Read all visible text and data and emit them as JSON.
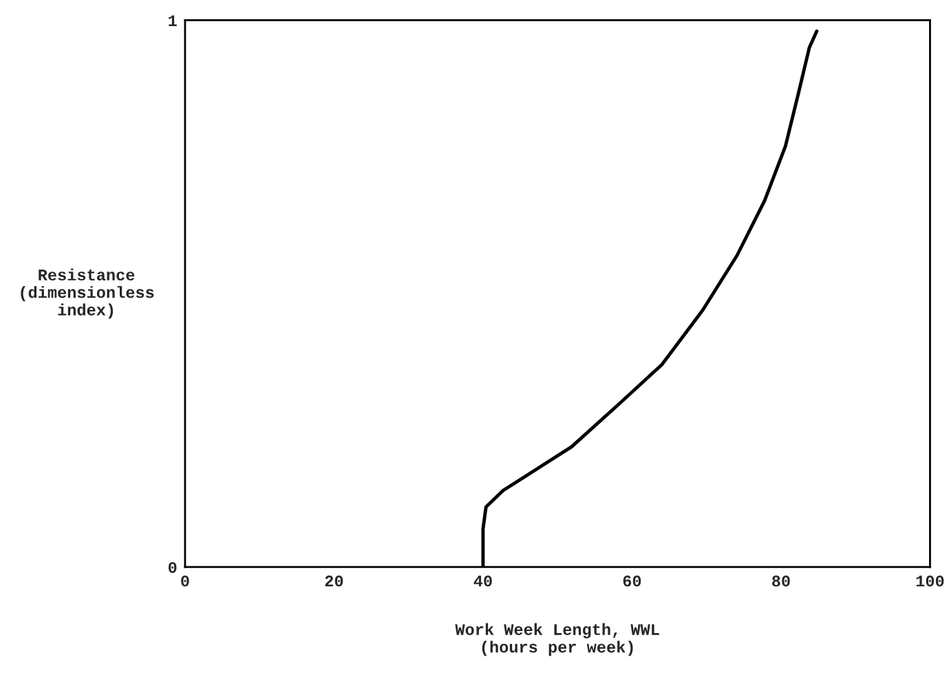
{
  "chart_data": {
    "type": "line",
    "xlabel": "Work Week Length, WWL\n(hours per week)",
    "ylabel": "Resistance\n(dimensionless\nindex)",
    "x": [
      40,
      40,
      40.4,
      42.7,
      47.3,
      51.9,
      58.4,
      64.0,
      69.5,
      74.1,
      77.8,
      80.6,
      82.4,
      83.8,
      84.8
    ],
    "series": [
      {
        "color": "#000000",
        "values": [
          0,
          0.07,
          0.11,
          0.14,
          0.18,
          0.22,
          0.3,
          0.37,
          0.47,
          0.57,
          0.67,
          0.77,
          0.87,
          0.95,
          0.98
        ]
      }
    ],
    "xlim": [
      0,
      100
    ],
    "ylim": [
      0,
      1
    ],
    "xticks": [
      0,
      20,
      40,
      60,
      80,
      100
    ],
    "yticks": [
      0,
      1
    ],
    "grid": false,
    "legend": false,
    "marker": "none",
    "line_style": "solid"
  }
}
